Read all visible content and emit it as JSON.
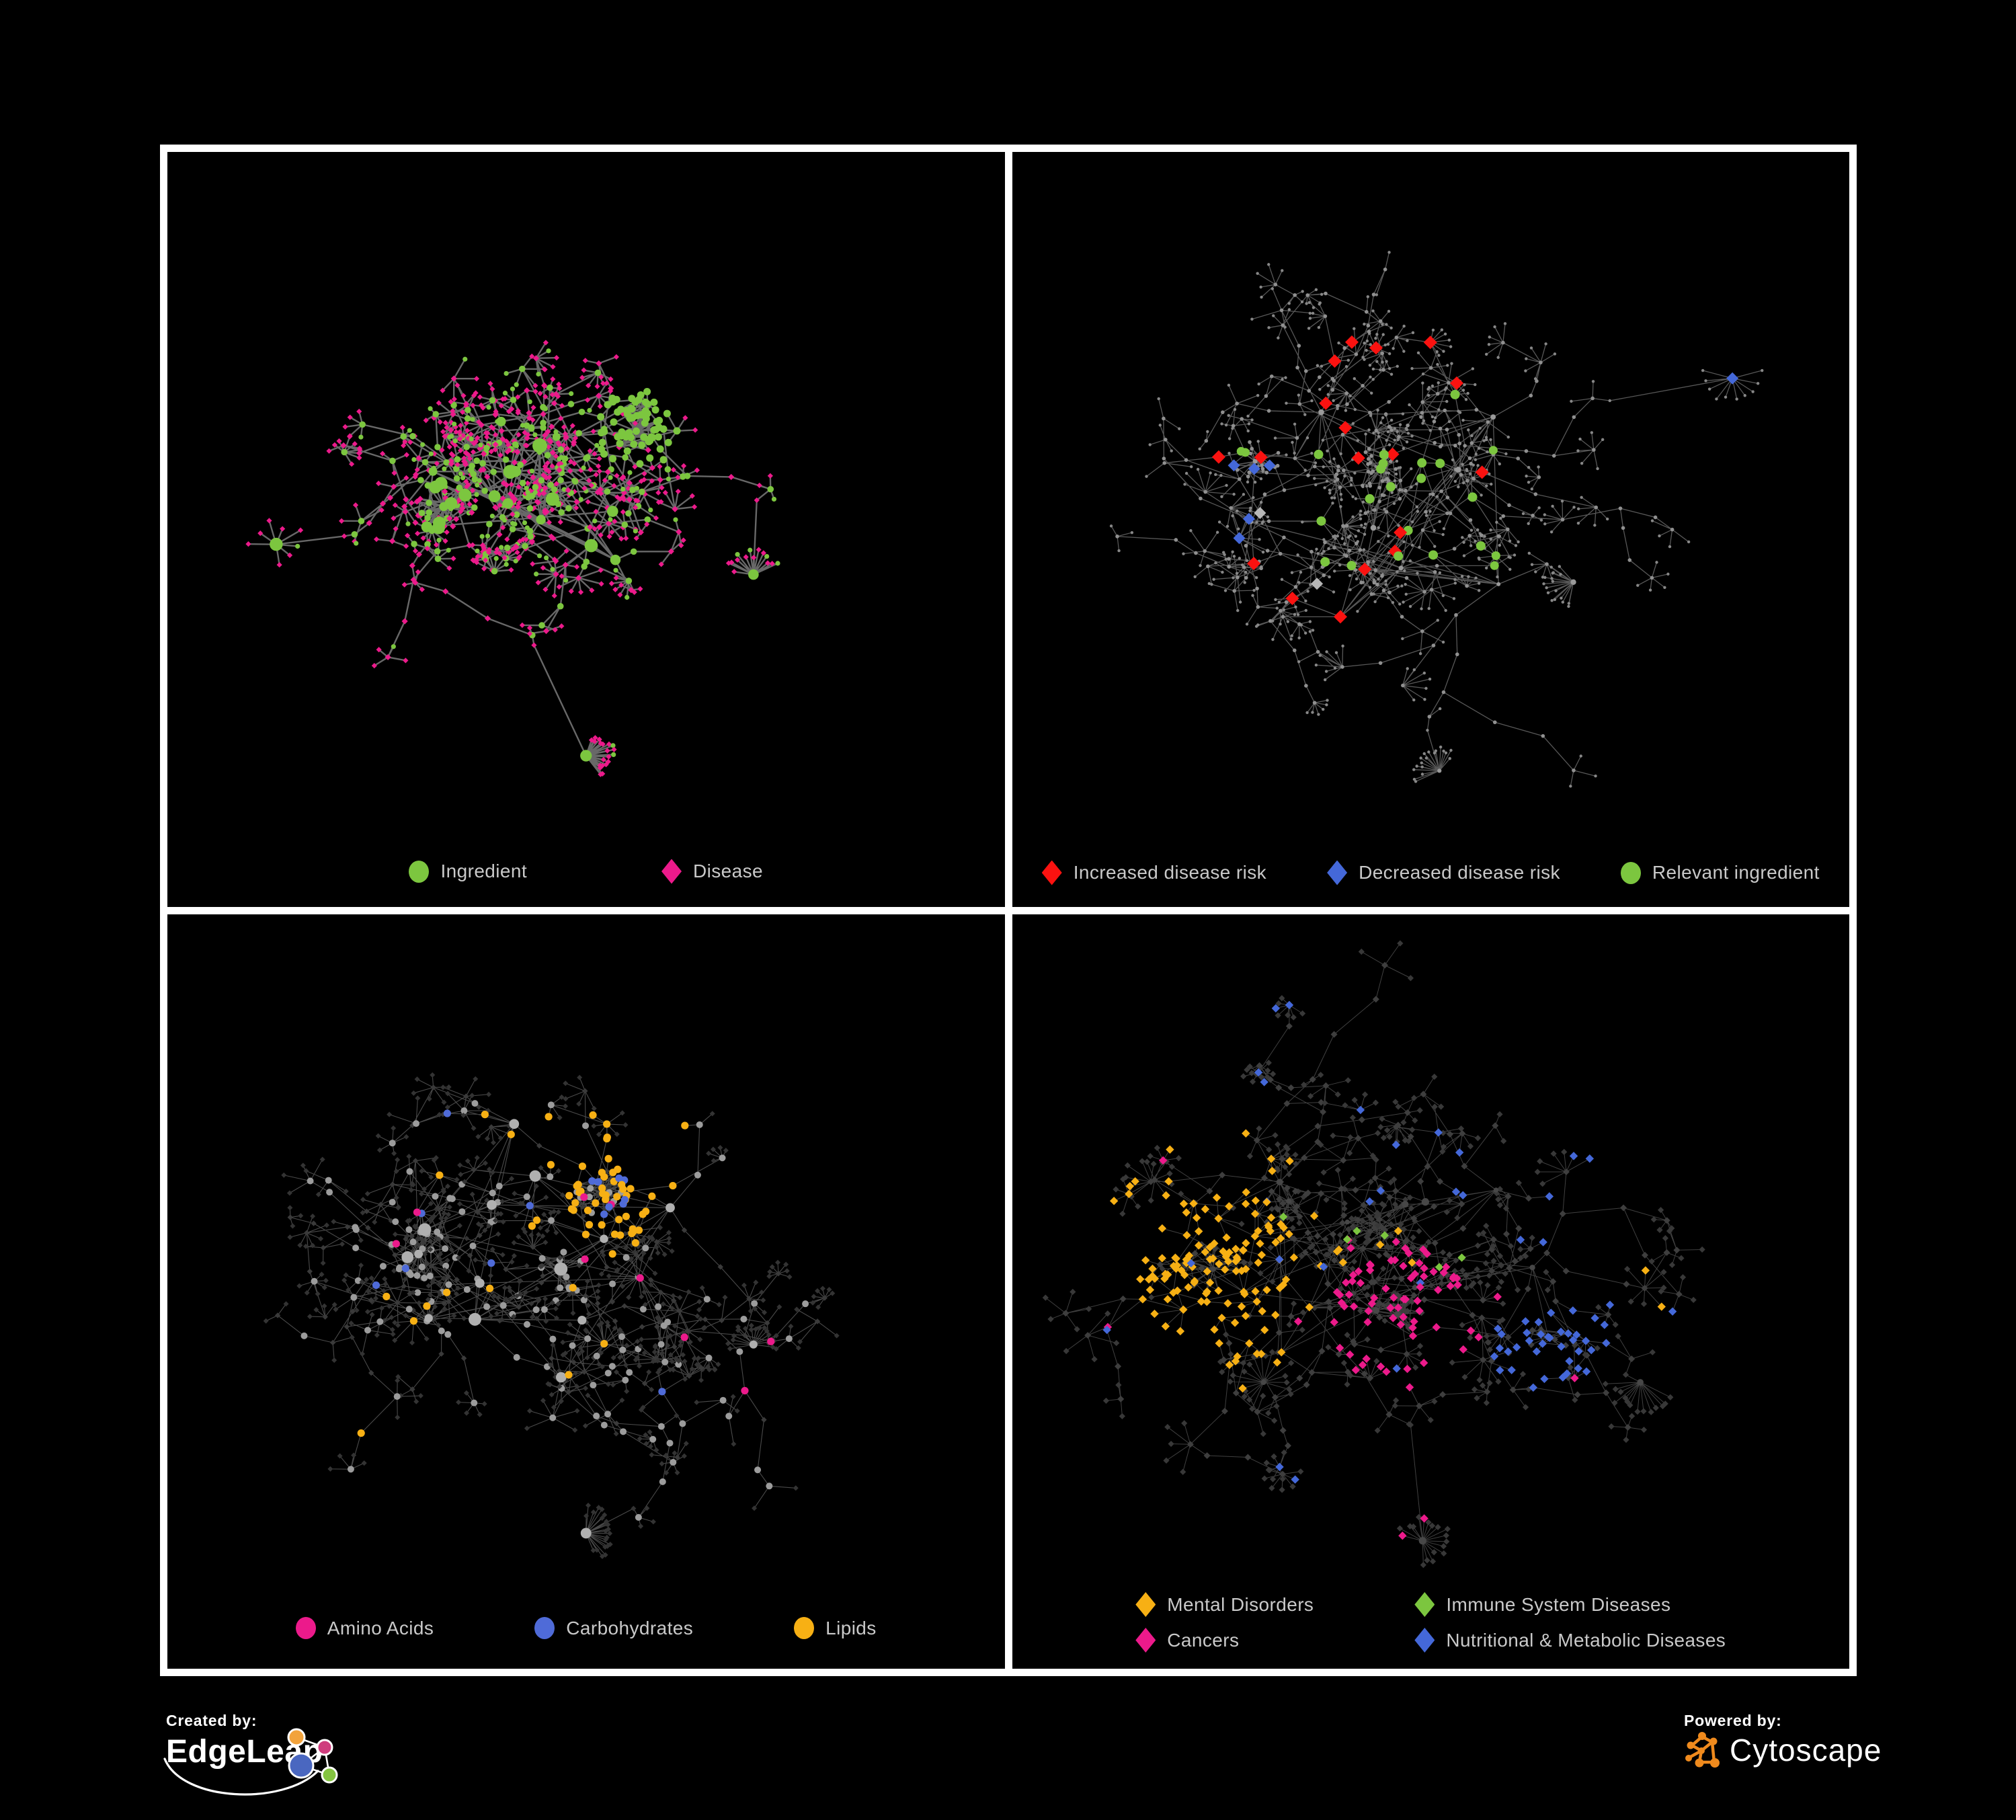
{
  "page": {
    "background": "#000000",
    "frame_color": "#ffffff"
  },
  "palette": {
    "green": "#7cc63f",
    "pink": "#ec1a8b",
    "red": "#fb1210",
    "blue": "#4468d9",
    "carb_blue": "#4f6bd8",
    "amber": "#f7b014",
    "gray_node": "#8f8f8f",
    "light_gray": "#b7b7b7",
    "dark_diamond": "#3a3a3a",
    "legend_text": "#c9c9c9"
  },
  "panels": [
    {
      "id": "ingredient-disease",
      "legend": {
        "items": [
          {
            "label": "Ingredient",
            "shape": "circle",
            "color": "#7cc63f"
          },
          {
            "label": "Disease",
            "shape": "diamond",
            "color": "#ec1a8b"
          }
        ]
      },
      "network": {
        "seed": 101,
        "spread": 0.85,
        "hubs": 13,
        "chains": 9,
        "edge": {
          "color": "#6e6e6e",
          "width": 2.4,
          "opacity": 0.95
        },
        "base": {
          "hub": [
            {
              "shape": "circle",
              "color": "#7cc63f",
              "r": [
                6,
                11
              ],
              "p": 1
            }
          ],
          "mid": [
            {
              "shape": "circle",
              "color": "#7cc63f",
              "r": 4.8,
              "p": 0.45
            },
            {
              "shape": "diamond",
              "color": "#ec1a8b",
              "r": 4.6,
              "p": 0.55
            }
          ],
          "leaf": [
            {
              "shape": "diamond",
              "color": "#ec1a8b",
              "r": 4.1,
              "p": 0.8
            },
            {
              "shape": "circle",
              "color": "#7cc63f",
              "r": 3.6,
              "p": 0.2
            }
          ]
        },
        "blobs": [
          [
            0.56,
            0.37,
            24,
            40
          ],
          [
            0.33,
            0.47,
            28,
            46
          ],
          [
            0.46,
            0.46,
            18,
            38
          ]
        ],
        "dandelions": [
          [
            0.5,
            0.8,
            20
          ],
          [
            0.7,
            0.56,
            14
          ],
          [
            0.13,
            0.52,
            8
          ]
        ],
        "overrides": [
          {
            "shape": "circle",
            "color": "#7cc63f",
            "r": 5.5,
            "p": 0.85,
            "types": [
              "hub",
              "mid",
              "leaf"
            ],
            "regions": [
              [
                0.56,
                0.37,
                0.05
              ]
            ]
          },
          {
            "shape": "circle",
            "color": "#7cc63f",
            "r": 9.5,
            "p": 0.2,
            "types": [
              "hub",
              "mid"
            ],
            "regions": [
              [
                0.33,
                0.47,
                0.03
              ]
            ]
          }
        ]
      }
    },
    {
      "id": "disease-risk",
      "legend": {
        "items": [
          {
            "label": "Increased disease risk",
            "shape": "diamond",
            "color": "#fb1210"
          },
          {
            "label": "Decreased disease risk",
            "shape": "diamond",
            "color": "#4468d9"
          },
          {
            "label": "Relevant ingredient",
            "shape": "circle",
            "color": "#7cc63f"
          }
        ]
      },
      "network": {
        "seed": 202,
        "spread": 1.0,
        "hubs": 12,
        "chains": 13,
        "edge": {
          "color": "#606060",
          "width": 1.3,
          "opacity": 0.9
        },
        "base": {
          "hub": [
            {
              "shape": "circle",
              "color": "#9a9a9a",
              "r": [
                3,
                4.5
              ],
              "p": 1
            }
          ],
          "mid": [
            {
              "shape": "circle",
              "color": "#909090",
              "r": 2.8,
              "p": 1
            }
          ],
          "leaf": [
            {
              "shape": "circle",
              "color": "#878787",
              "r": 2.2,
              "p": 1
            }
          ]
        },
        "blobs": [
          [
            0.44,
            0.42,
            22,
            40
          ],
          [
            0.29,
            0.41,
            18,
            38
          ]
        ],
        "dandelions": [
          [
            0.51,
            0.82,
            18
          ],
          [
            0.67,
            0.57,
            16
          ],
          [
            0.86,
            0.3,
            10
          ]
        ],
        "overrides": [
          {
            "shape": "diamond",
            "color": "#4468d9",
            "r": 9,
            "p": 0.12,
            "types": [
              "mid",
              "hub"
            ],
            "regions": [
              [
                0.295,
                0.44,
                0.075
              ]
            ]
          },
          {
            "shape": "diamond",
            "color": "#4468d9",
            "r": 9,
            "p": 0.85,
            "types": [
              "mid",
              "hub",
              "leaf"
            ],
            "regions": [
              [
                0.852,
                0.285,
                0.022
              ]
            ]
          },
          {
            "shape": "diamond",
            "color": "#b7b7b7",
            "r": 9,
            "p": 0.015,
            "types": [
              "mid",
              "hub"
            ],
            "regions": [
              [
                0.43,
                0.46,
                0.24
              ]
            ]
          },
          {
            "shape": "diamond",
            "color": "#fb1210",
            "r": 10,
            "p": 0.06,
            "types": [
              "mid",
              "hub"
            ],
            "regions": [
              [
                0.44,
                0.43,
                0.2
              ]
            ]
          },
          {
            "shape": "diamond",
            "color": "#fb1210",
            "r": 10,
            "p": 0.25,
            "types": [
              "mid",
              "hub"
            ],
            "regions": [
              [
                0.7,
                0.62,
                0.05
              ],
              [
                0.79,
                0.82,
                0.05
              ],
              [
                0.4,
                0.26,
                0.035
              ],
              [
                0.86,
                0.53,
                0.04
              ]
            ]
          },
          {
            "shape": "circle",
            "color": "#7cc63f",
            "r": 7,
            "p": 0.11,
            "types": [
              "mid",
              "hub"
            ],
            "regions": [
              [
                0.47,
                0.44,
                0.14
              ]
            ]
          },
          {
            "shape": "circle",
            "color": "#7cc63f",
            "r": 6.5,
            "p": 0.05,
            "types": [
              "mid",
              "hub"
            ],
            "regions": [
              [
                0.63,
                0.6,
                0.22
              ],
              [
                0.3,
                0.35,
                0.12
              ],
              [
                0.87,
                0.52,
                0.08
              ]
            ]
          }
        ]
      }
    },
    {
      "id": "nutrient-classes",
      "legend": {
        "items": [
          {
            "label": "Amino Acids",
            "shape": "circle",
            "color": "#ec1a8b"
          },
          {
            "label": "Carbohydrates",
            "shape": "circle",
            "color": "#4f6bd8"
          },
          {
            "label": "Lipids",
            "shape": "circle",
            "color": "#f7b014"
          }
        ]
      },
      "network": {
        "seed": 303,
        "spread": 1.0,
        "hubs": 13,
        "chains": 11,
        "edge": {
          "color": "#939393",
          "width": 1.1,
          "opacity": 0.5
        },
        "base": {
          "hub": [
            {
              "shape": "circle",
              "color": "#b0b0b0",
              "r": [
                6,
                10
              ],
              "p": 1
            }
          ],
          "mid": [
            {
              "shape": "circle",
              "color": "#9c9c9c",
              "r": 5,
              "p": 0.55
            },
            {
              "shape": "diamond",
              "color": "#3a3a3a",
              "r": 4.2,
              "p": 0.45
            }
          ],
          "leaf": [
            {
              "shape": "diamond",
              "color": "#333333",
              "r": 4,
              "p": 1
            }
          ]
        },
        "blobs": [
          [
            0.52,
            0.37,
            26,
            40
          ],
          [
            0.3,
            0.45,
            26,
            46
          ],
          [
            0.47,
            0.47,
            18,
            38
          ]
        ],
        "dandelions": [
          [
            0.5,
            0.82,
            22
          ],
          [
            0.7,
            0.57,
            16
          ]
        ],
        "overrides": [
          {
            "shape": "circle",
            "color": "#f7b014",
            "r": 5.6,
            "p": 0.55,
            "types": [
              "hub",
              "mid",
              "leaf"
            ],
            "regions": [
              [
                0.53,
                0.37,
                0.06
              ]
            ]
          },
          {
            "shape": "circle",
            "color": "#4f6bd8",
            "r": 5.6,
            "p": 0.15,
            "types": [
              "hub",
              "mid",
              "leaf"
            ],
            "regions": [
              [
                0.54,
                0.38,
                0.05
              ]
            ]
          },
          {
            "shape": "circle",
            "color": "#f7b014",
            "r": 5.6,
            "p": 0.1,
            "types": [
              "hub",
              "mid",
              "leaf"
            ],
            "regions": [
              [
                0.5,
                0.3,
                0.14
              ]
            ]
          },
          {
            "shape": "circle",
            "color": "#f7b014",
            "r": 5.6,
            "p": 0.04,
            "types": [
              "mid",
              "hub"
            ],
            "regions": [
              [
                0.45,
                0.55,
                0.3
              ]
            ]
          },
          {
            "shape": "circle",
            "color": "#4f6bd8",
            "r": 5.6,
            "p": 0.012,
            "types": [
              "mid"
            ],
            "regions": [
              [
                0.5,
                0.4,
                0.45
              ]
            ]
          },
          {
            "shape": "circle",
            "color": "#ec1a8b",
            "r": 5.6,
            "p": 0.12,
            "types": [
              "mid",
              "hub"
            ],
            "regions": [
              [
                0.8,
                0.72,
                0.1
              ],
              [
                0.72,
                0.8,
                0.08
              ]
            ]
          },
          {
            "shape": "circle",
            "color": "#ec1a8b",
            "r": 5.6,
            "p": 0.03,
            "types": [
              "mid",
              "hub"
            ],
            "regions": [
              [
                0.5,
                0.5,
                0.5
              ]
            ]
          }
        ]
      }
    },
    {
      "id": "disease-classes",
      "legend": {
        "items": [
          {
            "label": "Mental Disorders",
            "shape": "diamond",
            "color": "#f7b014"
          },
          {
            "label": "Immune System Diseases",
            "shape": "diamond",
            "color": "#7cc63f"
          },
          {
            "label": "Cancers",
            "shape": "diamond",
            "color": "#ec1a8b"
          },
          {
            "label": "Nutritional & Metabolic Diseases",
            "shape": "diamond",
            "color": "#4468d9"
          }
        ]
      },
      "network": {
        "seed": 404,
        "spread": 1.02,
        "hubs": 13,
        "chains": 11,
        "edge": {
          "color": "#8e8e8e",
          "width": 1.0,
          "opacity": 0.45
        },
        "base": {
          "hub": [
            {
              "shape": "circle",
              "color": "#474747",
              "r": [
                3.5,
                6
              ],
              "p": 1
            }
          ],
          "mid": [
            {
              "shape": "diamond",
              "color": "#3e3e3e",
              "r": 5,
              "p": 1
            }
          ],
          "leaf": [
            {
              "shape": "diamond",
              "color": "#383838",
              "r": 4.6,
              "p": 1
            }
          ]
        },
        "blobs": [
          [
            0.24,
            0.47,
            30,
            50
          ],
          [
            0.46,
            0.53,
            26,
            46
          ],
          [
            0.64,
            0.56,
            18,
            34
          ],
          [
            0.33,
            0.38,
            14,
            34
          ]
        ],
        "dandelions": [
          [
            0.49,
            0.83,
            18
          ],
          [
            0.3,
            0.62,
            16
          ],
          [
            0.75,
            0.62,
            14
          ]
        ],
        "overrides": [
          {
            "shape": "diamond",
            "color": "#f7b014",
            "r": 6.2,
            "p": 0.75,
            "types": [
              "hub",
              "mid",
              "leaf"
            ],
            "regions": [
              [
                0.24,
                0.47,
                0.1
              ]
            ]
          },
          {
            "shape": "diamond",
            "color": "#f7b014",
            "r": 6.2,
            "p": 0.18,
            "types": [
              "hub",
              "mid",
              "leaf"
            ],
            "regions": [
              [
                0.24,
                0.47,
                0.16
              ]
            ]
          },
          {
            "shape": "diamond",
            "color": "#ec1a8b",
            "r": 6.2,
            "p": 0.5,
            "types": [
              "hub",
              "mid",
              "leaf"
            ],
            "regions": [
              [
                0.47,
                0.54,
                0.09
              ],
              [
                0.88,
                0.33,
                0.05
              ]
            ]
          },
          {
            "shape": "diamond",
            "color": "#4468d9",
            "r": 6.2,
            "p": 0.5,
            "types": [
              "hub",
              "mid",
              "leaf"
            ],
            "regions": [
              [
                0.64,
                0.57,
                0.07
              ]
            ]
          },
          {
            "shape": "diamond",
            "color": "#4468d9",
            "r": 6.2,
            "p": 0.12,
            "types": [
              "hub",
              "mid",
              "leaf"
            ],
            "regions": [
              [
                0.8,
                0.38,
                0.22
              ],
              [
                0.22,
                0.16,
                0.12
              ]
            ]
          },
          {
            "shape": "diamond",
            "color": "#4468d9",
            "r": 6.2,
            "p": 0.03,
            "types": [
              "mid",
              "leaf"
            ],
            "regions": [
              [
                0.5,
                0.5,
                0.55
              ]
            ]
          },
          {
            "shape": "diamond",
            "color": "#ec1a8b",
            "r": 6.2,
            "p": 0.02,
            "types": [
              "mid",
              "leaf"
            ],
            "regions": [
              [
                0.5,
                0.5,
                0.5
              ]
            ]
          },
          {
            "shape": "diamond",
            "color": "#f7b014",
            "r": 6.2,
            "p": 0.012,
            "types": [
              "mid",
              "leaf"
            ],
            "regions": [
              [
                0.5,
                0.45,
                0.5
              ]
            ]
          },
          {
            "shape": "diamond",
            "color": "#7cc63f",
            "r": 6.2,
            "p": 0.01,
            "types": [
              "mid",
              "leaf"
            ],
            "regions": [
              [
                0.5,
                0.5,
                0.5
              ]
            ]
          }
        ]
      }
    }
  ],
  "footer": {
    "created_by_label": "Created by:",
    "created_by_name": "EdgeLeap",
    "powered_by_label": "Powered by:",
    "powered_by_name": "Cytoscape",
    "edgeleap_colors": {
      "orange": "#f2a33c",
      "pink": "#cf3d7e",
      "blue": "#4a67c0",
      "green": "#84c441"
    },
    "cytoscape_color": "#ef8a1d"
  }
}
